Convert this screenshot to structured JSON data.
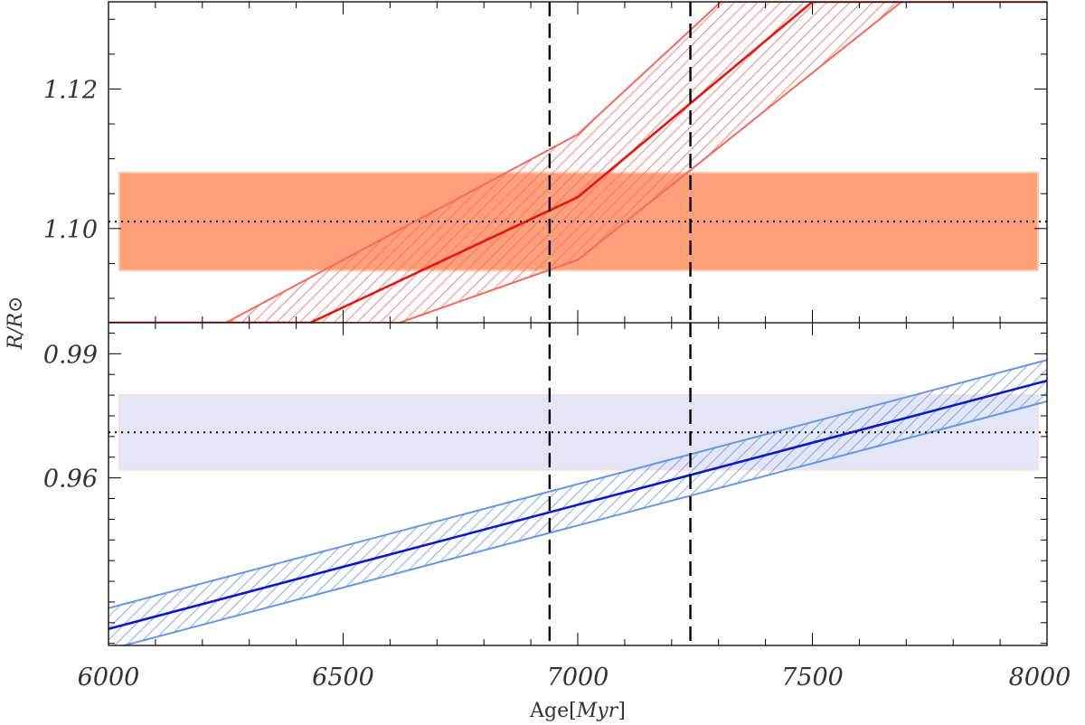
{
  "chart_data": {
    "type": "line",
    "shared_x": {
      "label": "Age[Myr]",
      "label_plain": "Age",
      "label_unit": "Myr",
      "range": [
        6000,
        8000
      ],
      "ticks": [
        6000,
        6500,
        7000,
        7500,
        8000
      ],
      "tick_labels": [
        "6000",
        "6500",
        "7000",
        "7500",
        "8000"
      ]
    },
    "shared_ylabel": "R/R⊙",
    "reference_lines": {
      "style": "dashed",
      "color": "#000000",
      "x": [
        6940,
        7240
      ]
    },
    "panels": [
      {
        "id": "top",
        "ylim": [
          1.0865,
          1.1325
        ],
        "yticks": [
          1.12,
          1.1
        ],
        "ytick_labels": [
          "1.12",
          "1.10"
        ],
        "minor_step": 0.005,
        "observed": {
          "value": 1.101,
          "low": 1.094,
          "high": 1.108,
          "fill": "#ffa07a"
        },
        "series": {
          "color": "#e8130f",
          "band_color": "#f6685a",
          "center": [
            [
              6000,
              1.0865
            ],
            [
              6430,
              1.0865
            ],
            [
              7000,
              1.1045
            ],
            [
              7500,
              1.1325
            ],
            [
              8000,
              1.1325
            ]
          ],
          "upper": [
            [
              6000,
              1.0865
            ],
            [
              6250,
              1.0865
            ],
            [
              7000,
              1.1135
            ],
            [
              7305,
              1.1325
            ],
            [
              8000,
              1.1325
            ]
          ],
          "lower": [
            [
              6000,
              1.0865
            ],
            [
              6620,
              1.0865
            ],
            [
              7000,
              1.0955
            ],
            [
              7690,
              1.1325
            ],
            [
              8000,
              1.1325
            ]
          ]
        }
      },
      {
        "id": "bottom",
        "ylim": [
          0.9195,
          0.9975
        ],
        "yticks": [
          0.99,
          0.96
        ],
        "ytick_labels": [
          "0.99",
          "0.96"
        ],
        "minor_step": 0.005,
        "observed": {
          "value": 0.971,
          "low": 0.962,
          "high": 0.98,
          "fill": "#e3e6f6"
        },
        "series": {
          "color": "#0b19c8",
          "band_color": "#6597e6",
          "center": [
            [
              6000,
              0.9235
            ],
            [
              8000,
              0.9835
            ]
          ],
          "upper": [
            [
              6000,
              0.9285
            ],
            [
              8000,
              0.9885
            ]
          ],
          "lower": [
            [
              6000,
              0.9185
            ],
            [
              8000,
              0.9785
            ]
          ]
        }
      }
    ]
  }
}
